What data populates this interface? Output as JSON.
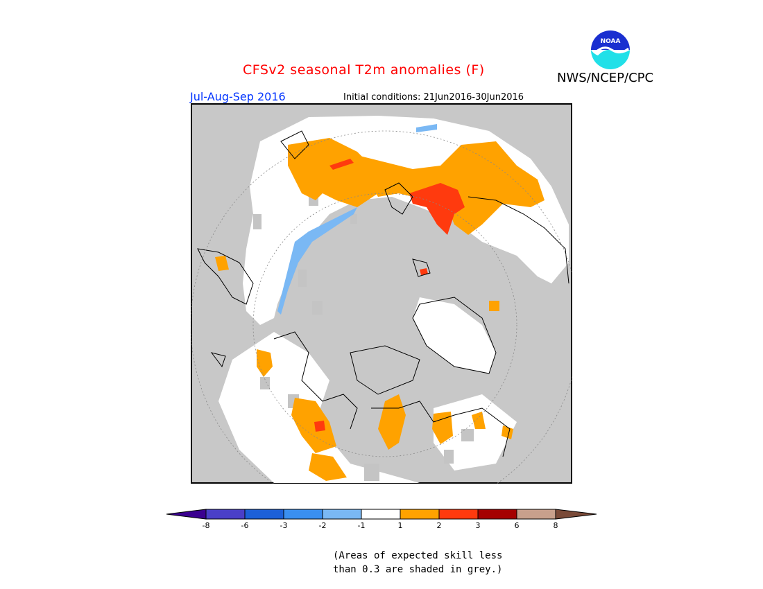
{
  "header": {
    "title": "CFSv2 seasonal T2m anomalies (F)",
    "agency": "NWS/NCEP/CPC",
    "season": "Jul-Aug-Sep 2016",
    "initial_conditions": "Initial conditions: 21Jun2016-30Jun2016"
  },
  "logo": {
    "text": "NOAA",
    "icon": "noaa-logo"
  },
  "colorbar": {
    "labels": [
      "-8",
      "-6",
      "-3",
      "-2",
      "-1",
      "1",
      "2",
      "3",
      "6",
      "8"
    ],
    "colors": [
      "#3b0090",
      "#4a3fc8",
      "#1c60d8",
      "#3a8ff0",
      "#7ab8f4",
      "#ffffff",
      "#ffa200",
      "#ff3a0e",
      "#a50000",
      "#c8a08c",
      "#7a4a38"
    ]
  },
  "note": {
    "line1": "(Areas of expected skill less",
    "line2": "than 0.3 are shaded in grey.)"
  },
  "map_colors": {
    "background": "#c9c9c9",
    "no_skill_grey": "#c4c4c4",
    "warm_1_2": "#ffa200",
    "warm_2_3": "#ff3a0e",
    "cool_neg2_neg1": "#7ab8f4"
  }
}
